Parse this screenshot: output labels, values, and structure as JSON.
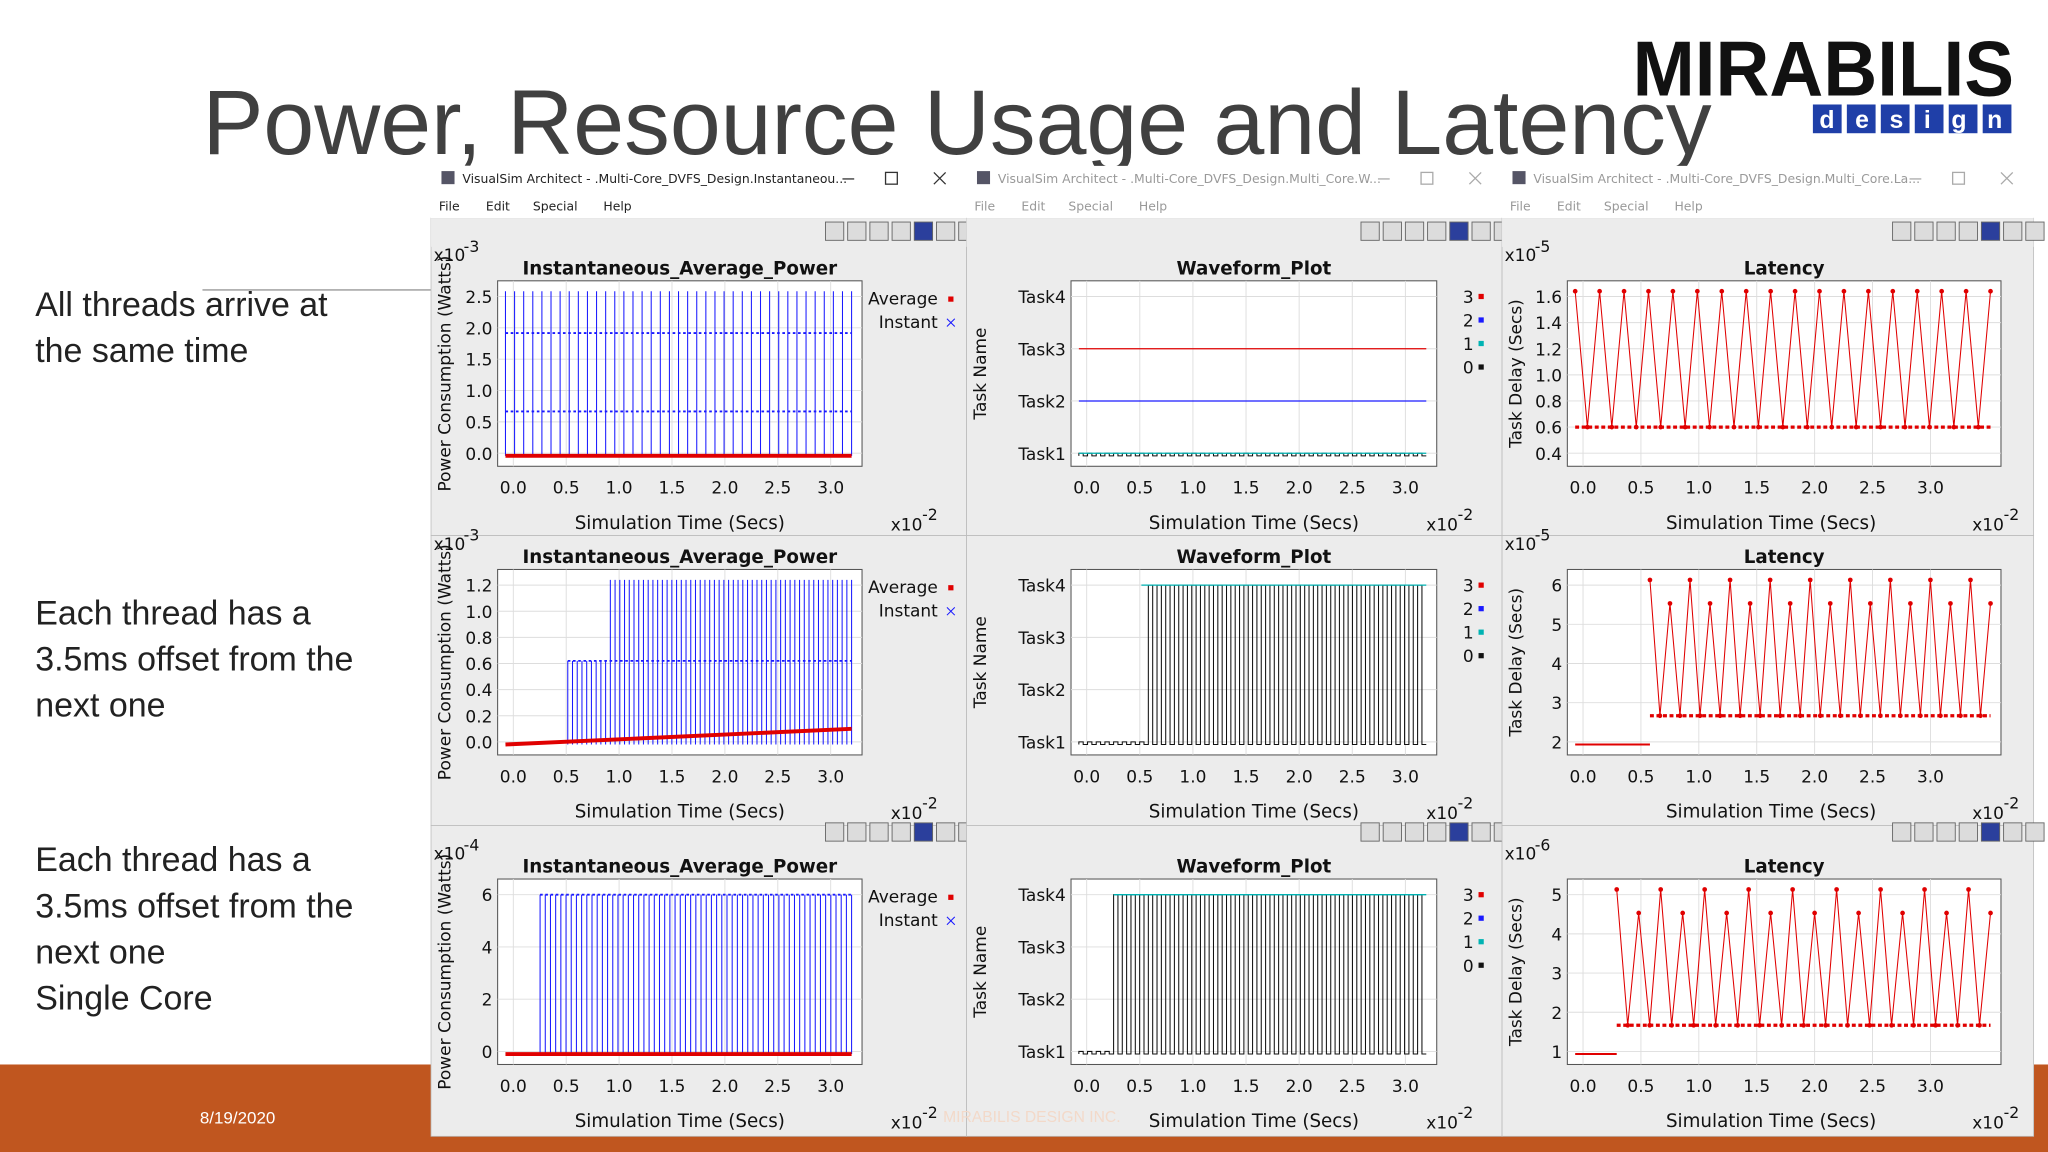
{
  "slide": {
    "title": "Power, Resource Usage and Latency",
    "logo": {
      "name": "MIRABILIS",
      "tagline": "design"
    },
    "notes": [
      {
        "lines": [
          "All threads arrive at",
          "the same time"
        ]
      },
      {
        "lines": [
          "Each thread has a",
          "3.5ms offset from the",
          "next one"
        ]
      },
      {
        "lines": [
          "Each thread has a",
          "3.5ms offset from the",
          "next one",
          "Single Core"
        ]
      }
    ],
    "footer": {
      "date": "8/19/2020",
      "company": "MIRABILIS DESIGN INC."
    }
  },
  "windows": [
    {
      "title": "VisualSim Architect - .Multi-Core_DVFS_Design.Instantaneou...",
      "menu": [
        "File",
        "Edit",
        "Special",
        "Help"
      ]
    },
    {
      "title": "VisualSim Architect - .Multi-Core_DVFS_Design.Multi_Core.W...",
      "menu": [
        "File",
        "Edit",
        "Special",
        "Help"
      ]
    },
    {
      "title": "VisualSim Architect - .Multi-Core_DVFS_Design.Multi_Core.La...",
      "menu": [
        "File",
        "Edit",
        "Special",
        "Help"
      ]
    }
  ],
  "plots": [
    {
      "title": "Instantaneous_Average_Power",
      "y_label": "Power Consumption (Watts)",
      "x_label": "Simulation Time (Secs)",
      "y_exponent": {
        "base": "x10",
        "power": "-3"
      },
      "x_exponent": {
        "base": "x10",
        "power": "-2"
      },
      "x_ticks": [
        "0.0",
        "0.5",
        "1.0",
        "1.5",
        "2.0",
        "2.5",
        "3.0"
      ],
      "y_ticks": [
        "0.0",
        "0.5",
        "1.0",
        "1.5",
        "2.0",
        "2.5"
      ],
      "legend": [
        "Average",
        "Instant"
      ]
    },
    {
      "title": "Waveform_Plot",
      "y_label": "Task Name",
      "x_label": "Simulation Time (Secs)",
      "x_exponent": {
        "base": "x10",
        "power": "-2"
      },
      "x_ticks": [
        "0.0",
        "0.5",
        "1.0",
        "1.5",
        "2.0",
        "2.5",
        "3.0"
      ],
      "y_ticks": [
        "Task1",
        "Task2",
        "Task3",
        "Task4"
      ],
      "legend": [
        "3",
        "2",
        "1",
        "0"
      ]
    },
    {
      "title": "Latency",
      "y_label": "Task Delay (Secs)",
      "x_label": "Simulation Time (Secs)",
      "y_exponent": {
        "base": "x10",
        "power": "-5"
      },
      "x_exponent": {
        "base": "x10",
        "power": "-2"
      },
      "x_ticks": [
        "0.0",
        "0.5",
        "1.0",
        "1.5",
        "2.0",
        "2.5",
        "3.0"
      ],
      "y_ticks": [
        "0.4",
        "0.6",
        "0.8",
        "1.0",
        "1.2",
        "1.4",
        "1.6"
      ]
    },
    {
      "title": "Instantaneous_Average_Power",
      "y_label": "Power Consumption (Watts)",
      "x_label": "Simulation Time (Secs)",
      "y_exponent": {
        "base": "x10",
        "power": "-3"
      },
      "x_exponent": {
        "base": "x10",
        "power": "-2"
      },
      "x_ticks": [
        "0.0",
        "0.5",
        "1.0",
        "1.5",
        "2.0",
        "2.5",
        "3.0"
      ],
      "y_ticks": [
        "0.0",
        "0.2",
        "0.4",
        "0.6",
        "0.8",
        "1.0",
        "1.2"
      ],
      "legend": [
        "Average",
        "Instant"
      ]
    },
    {
      "title": "Waveform_Plot",
      "y_label": "Task Name",
      "x_label": "Simulation Time (Secs)",
      "x_exponent": {
        "base": "x10",
        "power": "-2"
      },
      "x_ticks": [
        "0.0",
        "0.5",
        "1.0",
        "1.5",
        "2.0",
        "2.5",
        "3.0"
      ],
      "y_ticks": [
        "Task1",
        "Task2",
        "Task3",
        "Task4"
      ],
      "legend": [
        "3",
        "2",
        "1",
        "0"
      ]
    },
    {
      "title": "Latency",
      "y_label": "Task Delay (Secs)",
      "x_label": "Simulation Time (Secs)",
      "y_exponent": {
        "base": "x10",
        "power": "-5"
      },
      "x_exponent": {
        "base": "x10",
        "power": "-2"
      },
      "x_ticks": [
        "0.0",
        "0.5",
        "1.0",
        "1.5",
        "2.0",
        "2.5",
        "3.0"
      ],
      "y_ticks": [
        "2",
        "3",
        "4",
        "5",
        "6"
      ]
    },
    {
      "title": "Instantaneous_Average_Power",
      "y_label": "Power Consumption (Watts)",
      "x_label": "Simulation Time (Secs)",
      "y_exponent": {
        "base": "x10",
        "power": "-4"
      },
      "x_exponent": {
        "base": "x10",
        "power": "-2"
      },
      "x_ticks": [
        "0.0",
        "0.5",
        "1.0",
        "1.5",
        "2.0",
        "2.5",
        "3.0"
      ],
      "y_ticks": [
        "0",
        "2",
        "4",
        "6"
      ],
      "legend": [
        "Average",
        "Instant"
      ]
    },
    {
      "title": "Waveform_Plot",
      "y_label": "Task Name",
      "x_label": "Simulation Time (Secs)",
      "x_exponent": {
        "base": "x10",
        "power": "-2"
      },
      "x_ticks": [
        "0.0",
        "0.5",
        "1.0",
        "1.5",
        "2.0",
        "2.5",
        "3.0"
      ],
      "y_ticks": [
        "Task1",
        "Task2",
        "Task3",
        "Task4"
      ],
      "legend": [
        "3",
        "2",
        "1",
        "0"
      ]
    },
    {
      "title": "Latency",
      "y_label": "Task Delay (Secs)",
      "x_label": "Simulation Time (Secs)",
      "y_exponent": {
        "base": "x10",
        "power": "-6"
      },
      "x_exponent": {
        "base": "x10",
        "power": "-2"
      },
      "x_ticks": [
        "0.0",
        "0.5",
        "1.0",
        "1.5",
        "2.0",
        "2.5",
        "3.0"
      ],
      "y_ticks": [
        "1",
        "2",
        "3",
        "4",
        "5"
      ]
    }
  ]
}
